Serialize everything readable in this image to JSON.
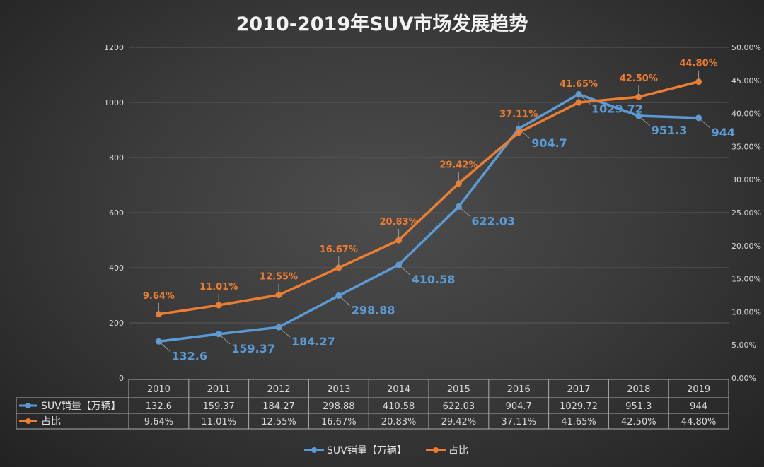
{
  "chart_data": {
    "type": "line",
    "title": "2010-2019年SUV市场发展趋势",
    "categories": [
      "2010",
      "2011",
      "2012",
      "2013",
      "2014",
      "2015",
      "2016",
      "2017",
      "2018",
      "2019"
    ],
    "series": [
      {
        "name": "SUV销量【万辆】",
        "axis": "left",
        "color": "#5b9bd5",
        "values": [
          132.6,
          159.37,
          184.27,
          298.88,
          410.58,
          622.03,
          904.7,
          1029.72,
          951.3,
          944
        ],
        "labels": [
          "132.6",
          "159.37",
          "184.27",
          "298.88",
          "410.58",
          "622.03",
          "904.7",
          "1029.72",
          "951.3",
          "944"
        ]
      },
      {
        "name": "占比",
        "axis": "right",
        "color": "#ed7d31",
        "values": [
          9.64,
          11.01,
          12.55,
          16.67,
          20.83,
          29.42,
          37.11,
          41.65,
          42.5,
          44.8
        ],
        "labels": [
          "9.64%",
          "11.01%",
          "12.55%",
          "16.67%",
          "20.83%",
          "29.42%",
          "37.11%",
          "41.65%",
          "42.50%",
          "44.80%"
        ]
      }
    ],
    "y_left": {
      "range": [
        0,
        1200
      ],
      "ticks": [
        "0",
        "200",
        "400",
        "600",
        "800",
        "1000",
        "1200"
      ]
    },
    "y_right": {
      "range": [
        0,
        50
      ],
      "ticks": [
        "0.00%",
        "5.00%",
        "10.00%",
        "15.00%",
        "20.00%",
        "25.00%",
        "30.00%",
        "35.00%",
        "40.00%",
        "45.00%",
        "50.00%"
      ]
    },
    "grid": true,
    "legend": "bottom",
    "data_table": true
  }
}
